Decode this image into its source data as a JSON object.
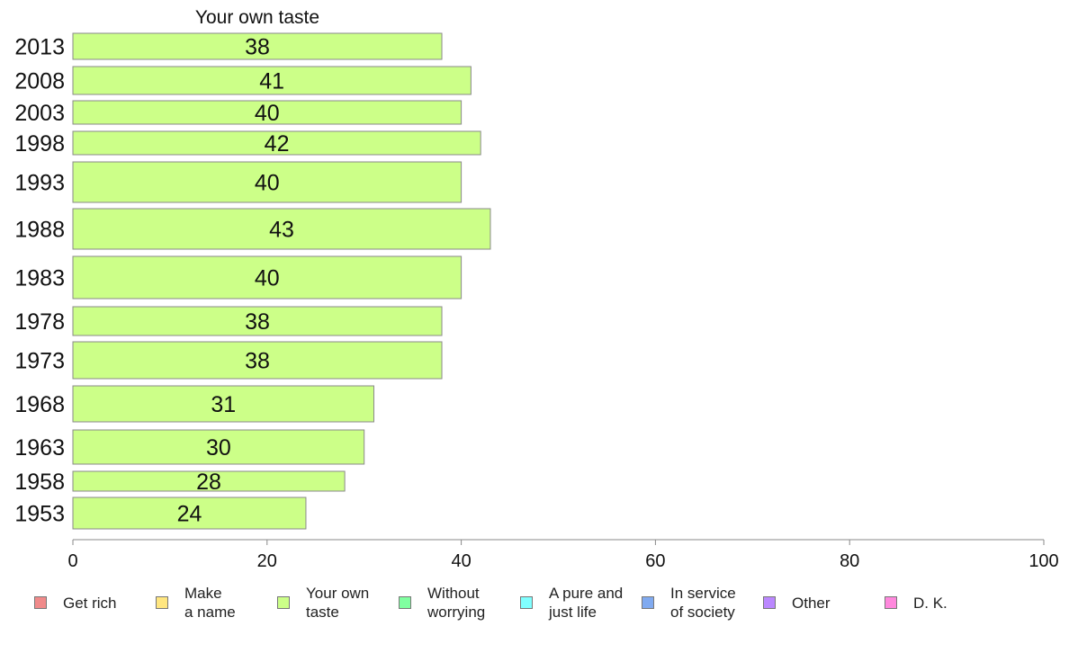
{
  "chart_data": {
    "type": "bar",
    "orientation": "horizontal",
    "title": "Your own taste",
    "categories": [
      "2013",
      "2008",
      "2003",
      "1998",
      "1993",
      "1988",
      "1983",
      "1978",
      "1973",
      "1968",
      "1963",
      "1958",
      "1953"
    ],
    "values": [
      38,
      41,
      40,
      42,
      40,
      43,
      40,
      38,
      38,
      31,
      30,
      28,
      24
    ],
    "series": [
      {
        "name": "Your own taste",
        "color": "#ccff88"
      }
    ],
    "xlim": [
      0,
      100
    ],
    "xticks": [
      0,
      20,
      40,
      60,
      80,
      100
    ],
    "grid": false,
    "legend_position": "bottom",
    "legend": [
      {
        "label": "Get rich",
        "color": "#f08a8a"
      },
      {
        "label": "Make\na name",
        "color": "#ffe680"
      },
      {
        "label": "Your own\ntaste",
        "color": "#ccff88"
      },
      {
        "label": "Without\nworrying",
        "color": "#80ffa0"
      },
      {
        "label": "A pure and\njust life",
        "color": "#80ffff"
      },
      {
        "label": "In service\nof society",
        "color": "#80aaf0"
      },
      {
        "label": "Other",
        "color": "#bb88ff"
      },
      {
        "label": "D. K.",
        "color": "#ff88dd"
      }
    ]
  }
}
